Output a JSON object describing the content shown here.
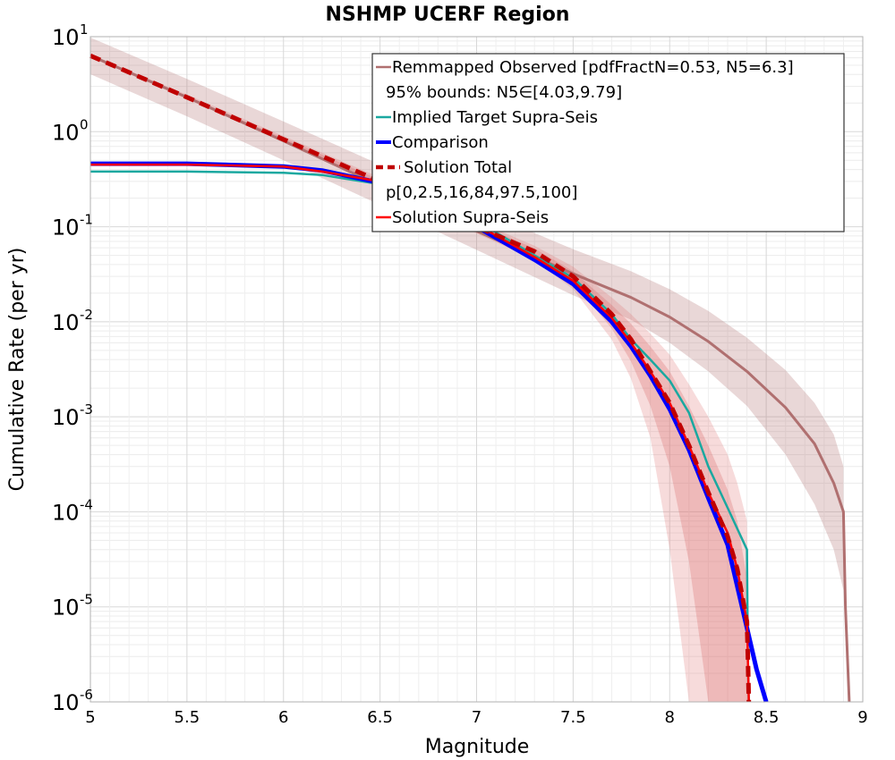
{
  "chart_data": {
    "type": "line",
    "title": "NSHMP UCERF Region",
    "xlabel": "Magnitude",
    "ylabel": "Cumulative Rate (per yr)",
    "xlim": [
      5,
      9
    ],
    "ylim": [
      1e-06,
      10
    ],
    "yscale": "log",
    "grid": true,
    "legend_position": "top-right",
    "xticks": [
      "5",
      "5.5",
      "6",
      "6.5",
      "7",
      "7.5",
      "8",
      "8.5",
      "9"
    ],
    "yticks": [
      {
        "base": "10",
        "exp": "1"
      },
      {
        "base": "10",
        "exp": "0"
      },
      {
        "base": "10",
        "exp": "-1"
      },
      {
        "base": "10",
        "exp": "-2"
      },
      {
        "base": "10",
        "exp": "-3"
      },
      {
        "base": "10",
        "exp": "-4"
      },
      {
        "base": "10",
        "exp": "-5"
      },
      {
        "base": "10",
        "exp": "-6"
      }
    ],
    "legend": [
      {
        "label": "Remmapped Observed [pdfFractN=0.53, N5=6.3]",
        "style": "line",
        "color": "#b07070"
      },
      {
        "label": "95% bounds: N5∈[4.03,9.79]",
        "style": "band",
        "color": "#ead7d7"
      },
      {
        "label": "Implied Target Supra-Seis",
        "style": "line",
        "color": "#1aa8a0"
      },
      {
        "label": "Comparison",
        "style": "thick",
        "color": "#0000ff"
      },
      {
        "label": "Solution Total",
        "style": "dash",
        "color": "#c00000"
      },
      {
        "label": "p[0,2.5,16,84,97.5,100]",
        "style": "band",
        "color": "#f0c8c8"
      },
      {
        "label": "Solution Supra-Seis",
        "style": "line",
        "color": "#ff0000"
      }
    ],
    "series": [
      {
        "name": "Remmapped Observed [pdfFractN=0.53, N5=6.3]",
        "color": "#b07070",
        "x": [
          5.0,
          5.5,
          6.0,
          6.5,
          7.0,
          7.5,
          7.8,
          8.0,
          8.2,
          8.4,
          8.6,
          8.75,
          8.85,
          8.9,
          8.91,
          8.93
        ],
        "y": [
          6.3,
          2.3,
          0.8,
          0.27,
          0.09,
          0.032,
          0.018,
          0.0112,
          0.0062,
          0.003,
          0.00125,
          0.00052,
          0.0002,
          0.0001,
          1e-05,
          1e-06
        ]
      },
      {
        "name": "95% bounds: N5∈[4.03,9.79]",
        "type": "band",
        "color": "#ead7d7",
        "x": [
          5.0,
          5.5,
          6.0,
          6.5,
          7.0,
          7.5,
          7.8,
          8.0,
          8.2,
          8.4,
          8.6,
          8.75,
          8.85,
          8.9
        ],
        "low": [
          4.03,
          1.45,
          0.5,
          0.17,
          0.057,
          0.019,
          0.0105,
          0.006,
          0.003,
          0.0013,
          0.0004,
          0.00012,
          4e-05,
          1.5e-05
        ],
        "high": [
          9.79,
          3.6,
          1.28,
          0.45,
          0.155,
          0.058,
          0.034,
          0.022,
          0.013,
          0.0068,
          0.0031,
          0.0014,
          0.00065,
          0.0003
        ]
      },
      {
        "name": "Implied Target Supra-Seis",
        "color": "#1aa8a0",
        "x": [
          5.0,
          5.5,
          6.0,
          6.2,
          6.5,
          6.8,
          7.0,
          7.3,
          7.5,
          7.7,
          7.8,
          7.9,
          8.0,
          8.1,
          8.2,
          8.3,
          8.4,
          8.405,
          8.41
        ],
        "y": [
          0.38,
          0.38,
          0.37,
          0.35,
          0.28,
          0.185,
          0.115,
          0.05,
          0.029,
          0.012,
          0.0065,
          0.004,
          0.0024,
          0.0011,
          0.0003,
          0.00011,
          4e-05,
          3e-06,
          1e-06
        ]
      },
      {
        "name": "Comparison",
        "color": "#0000ff",
        "x": [
          5.0,
          5.5,
          6.0,
          6.2,
          6.5,
          6.8,
          7.0,
          7.3,
          7.5,
          7.7,
          7.8,
          7.9,
          8.0,
          8.1,
          8.2,
          8.3,
          8.4,
          8.45,
          8.5
        ],
        "y": [
          0.46,
          0.46,
          0.43,
          0.39,
          0.29,
          0.17,
          0.1,
          0.045,
          0.025,
          0.01,
          0.0055,
          0.0027,
          0.0012,
          0.00045,
          0.00014,
          4.5e-05,
          6e-06,
          2.2e-06,
          8e-07
        ]
      },
      {
        "name": "Solution Total",
        "color": "#c00000",
        "x": [
          5.0,
          5.5,
          6.0,
          6.5,
          7.0,
          7.3,
          7.5,
          7.7,
          7.8,
          7.9,
          8.0,
          8.1,
          8.2,
          8.3,
          8.35,
          8.4,
          8.405,
          8.41
        ],
        "y": [
          6.3,
          2.3,
          0.83,
          0.3,
          0.1,
          0.055,
          0.03,
          0.012,
          0.0065,
          0.003,
          0.0014,
          0.0005,
          0.00016,
          5.5e-05,
          2.5e-05,
          7e-06,
          3e-06,
          1e-06
        ]
      },
      {
        "name": "p[0,2.5,16,84,97.5,100]",
        "type": "bands",
        "color": "#e8a8a8",
        "x": [
          5.0,
          5.5,
          6.0,
          6.5,
          7.0,
          7.3,
          7.5,
          7.7,
          7.8,
          7.9,
          8.0,
          8.1,
          8.2,
          8.3,
          8.35,
          8.4,
          8.41
        ],
        "outer_low": [
          6.1,
          2.2,
          0.78,
          0.26,
          0.085,
          0.045,
          0.022,
          0.0065,
          0.0025,
          0.0006,
          4e-05,
          1e-06,
          1e-06,
          1e-06,
          1e-06,
          1e-06,
          1e-06
        ],
        "outer_high": [
          6.5,
          2.45,
          0.9,
          0.33,
          0.115,
          0.063,
          0.038,
          0.018,
          0.012,
          0.0075,
          0.0045,
          0.0022,
          0.001,
          0.0004,
          0.0002,
          8e-05,
          1e-06
        ],
        "inner_low": [
          6.2,
          2.25,
          0.8,
          0.28,
          0.092,
          0.05,
          0.026,
          0.0085,
          0.0038,
          0.0013,
          0.0003,
          3e-05,
          1e-06,
          1e-06,
          1e-06,
          1e-06,
          1e-06
        ],
        "inner_high": [
          6.4,
          2.35,
          0.86,
          0.31,
          0.108,
          0.059,
          0.034,
          0.015,
          0.0095,
          0.0055,
          0.003,
          0.0013,
          0.0005,
          0.00017,
          8e-05,
          2e-05,
          1e-06
        ]
      },
      {
        "name": "Solution Supra-Seis",
        "color": "#ff0000",
        "x": [
          5.0,
          5.5,
          6.0,
          6.2,
          6.5,
          6.8,
          7.0,
          7.3,
          7.5,
          7.7,
          7.8,
          7.9,
          8.0,
          8.1,
          8.2,
          8.3,
          8.35,
          8.4,
          8.405,
          8.41
        ],
        "y": [
          0.45,
          0.45,
          0.43,
          0.38,
          0.3,
          0.18,
          0.105,
          0.048,
          0.027,
          0.011,
          0.006,
          0.003,
          0.0014,
          0.0005,
          0.00016,
          6e-05,
          2.5e-05,
          7e-06,
          3e-06,
          1e-06
        ]
      }
    ]
  }
}
